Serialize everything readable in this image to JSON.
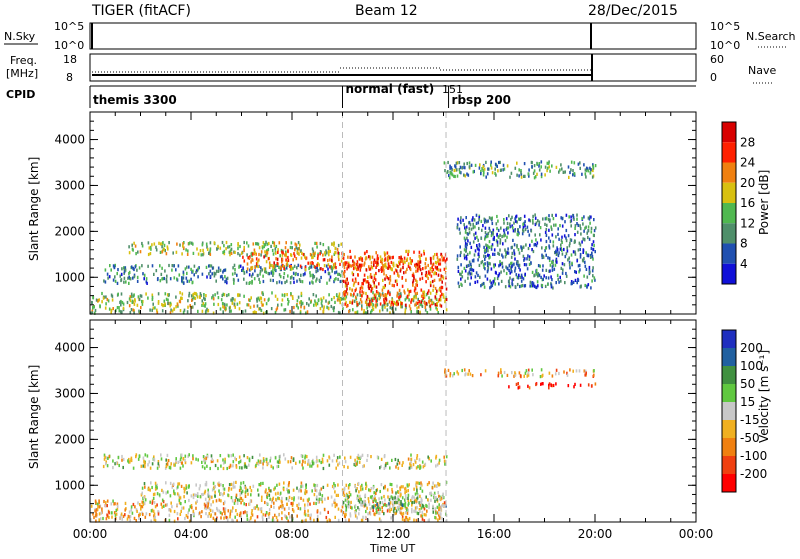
{
  "header": {
    "radar": "TIGER (fitACF)",
    "beam": "Beam 12",
    "date": "28/Dec/2015"
  },
  "panels": {
    "nsky_label": "N.Sky",
    "nsky_ticks": [
      "10^5",
      "10^0"
    ],
    "nsearch_label": "N.Search",
    "freq_label_1": "Freq.",
    "freq_label_2": "[MHz]",
    "freq_ticks": [
      "18",
      "8"
    ],
    "nave_label": "Nave",
    "nave_ticks": [
      "60",
      "0"
    ],
    "cpid_label": "CPID",
    "cpid_segments": [
      {
        "label": "themis 3300",
        "start_h": 0
      },
      {
        "label": "normal (fast)",
        "start_h": 10
      },
      {
        "label": "151",
        "start_h": 14.1
      },
      {
        "label": "rbsp 200",
        "start_h": 14.2
      }
    ]
  },
  "colors": {
    "power_scale": [
      "#1010d8",
      "#2050b0",
      "#4f8f6a",
      "#50b850",
      "#d8c010",
      "#f08010",
      "#ff2000",
      "#d80000"
    ],
    "velocity_scale": [
      "#1f2fbf",
      "#2060a0",
      "#409040",
      "#60c840",
      "#c8c8c8",
      "#f0b020",
      "#f08010",
      "#f04010",
      "#ff0000"
    ]
  },
  "chart_data": [
    {
      "type": "heatmap",
      "title": "",
      "xlabel": "",
      "ylabel": "Slant Range [km]",
      "xlim": [
        "00:00",
        "00:00"
      ],
      "ylim": [
        200,
        4600
      ],
      "x_ticks": [
        "00:00",
        "04:00",
        "08:00",
        "12:00",
        "16:00",
        "20:00",
        "00:00"
      ],
      "y_ticks": [
        "1000",
        "2000",
        "3000",
        "4000"
      ],
      "colorbar_label": "Power [dB]",
      "colorbar_ticks": [
        "4",
        "8",
        "12",
        "16",
        "20",
        "24",
        "28"
      ],
      "echo_regions": [
        {
          "t0": 0.0,
          "t1": 14.1,
          "r0": 250,
          "r1": 700,
          "power_db": 14
        },
        {
          "t0": 0.5,
          "t1": 10.0,
          "r0": 900,
          "r1": 1300,
          "power_db": 8
        },
        {
          "t0": 1.5,
          "t1": 10.0,
          "r0": 1500,
          "r1": 1800,
          "power_db": 14
        },
        {
          "t0": 6.0,
          "t1": 14.1,
          "r0": 1200,
          "r1": 1600,
          "power_db": 22
        },
        {
          "t0": 10.0,
          "t1": 14.1,
          "r0": 400,
          "r1": 1500,
          "power_db": 24
        },
        {
          "t0": 14.0,
          "t1": 20.0,
          "r0": 3200,
          "r1": 3550,
          "power_db": 10
        },
        {
          "t0": 14.5,
          "t1": 20.0,
          "r0": 800,
          "r1": 2400,
          "power_db": 6
        }
      ]
    },
    {
      "type": "heatmap",
      "title": "",
      "xlabel": "Time UT",
      "ylabel": "Slant Range [km]",
      "xlim": [
        "00:00",
        "00:00"
      ],
      "ylim": [
        200,
        4600
      ],
      "x_ticks": [
        "00:00",
        "04:00",
        "08:00",
        "12:00",
        "16:00",
        "20:00",
        "00:00"
      ],
      "y_ticks": [
        "1000",
        "2000",
        "3000",
        "4000"
      ],
      "colorbar_label": "Velocity [m s⁻¹]",
      "colorbar_ticks": [
        "200",
        "100",
        "50",
        "15",
        "-15",
        "-50",
        "-100",
        "-200"
      ],
      "echo_regions": [
        {
          "t0": 0.0,
          "t1": 14.1,
          "r0": 250,
          "r1": 700,
          "velocity_ms": -50
        },
        {
          "t0": 0.5,
          "t1": 14.1,
          "r0": 1400,
          "r1": 1700,
          "velocity_ms": 0
        },
        {
          "t0": 2.0,
          "t1": 14.1,
          "r0": 700,
          "r1": 1100,
          "velocity_ms": 0
        },
        {
          "t0": 10.0,
          "t1": 14.1,
          "r0": 400,
          "r1": 800,
          "velocity_ms": 50
        },
        {
          "t0": 14.0,
          "t1": 20.0,
          "r0": 3400,
          "r1": 3550,
          "velocity_ms": -50
        },
        {
          "t0": 16.5,
          "t1": 20.0,
          "r0": 3150,
          "r1": 3250,
          "velocity_ms": -200
        }
      ]
    }
  ]
}
